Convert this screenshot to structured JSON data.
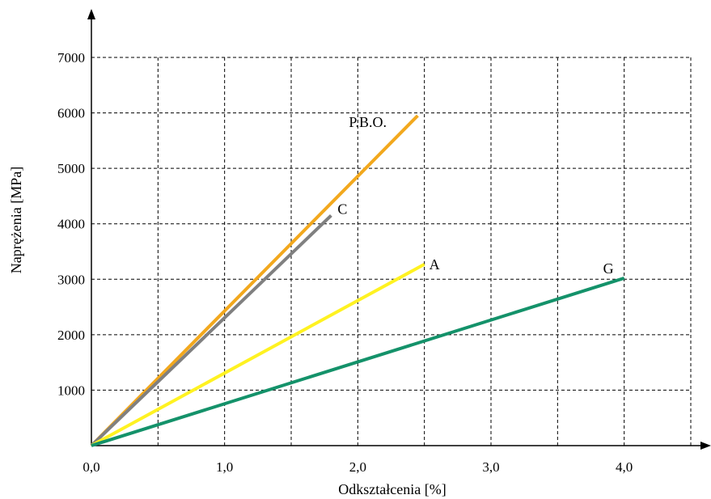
{
  "chart_data": {
    "type": "line",
    "xlabel": "Odkształcenia [%]",
    "ylabel": "Naprężenia [MPa]",
    "xlim": [
      0,
      4.5
    ],
    "ylim": [
      0,
      7000
    ],
    "x_ticks": [
      0,
      0.5,
      1.0,
      1.5,
      2.0,
      2.5,
      3.0,
      3.5,
      4.0,
      4.5
    ],
    "x_tick_labels": [
      "0,0",
      "1,0",
      "2,0",
      "3,0",
      "4,0"
    ],
    "x_tick_label_values": [
      0,
      1.0,
      2.0,
      3.0,
      4.0
    ],
    "y_ticks": [
      1000,
      2000,
      3000,
      4000,
      5000,
      6000,
      7000
    ],
    "y_tick_labels": [
      "1000",
      "2000",
      "3000",
      "4000",
      "5000",
      "6000",
      "7000"
    ],
    "grid": true,
    "series": [
      {
        "name": "P.B.O.",
        "color": "#F2A81D",
        "x": [
          0,
          2.45
        ],
        "y": [
          0,
          5950
        ]
      },
      {
        "name": "C",
        "color": "#808080",
        "x": [
          0,
          1.8
        ],
        "y": [
          0,
          4150
        ]
      },
      {
        "name": "A",
        "color": "#FFF221",
        "x": [
          0,
          2.5
        ],
        "y": [
          0,
          3270
        ]
      },
      {
        "name": "G",
        "color": "#14926A",
        "x": [
          0,
          4.0
        ],
        "y": [
          0,
          3020
        ]
      }
    ]
  }
}
